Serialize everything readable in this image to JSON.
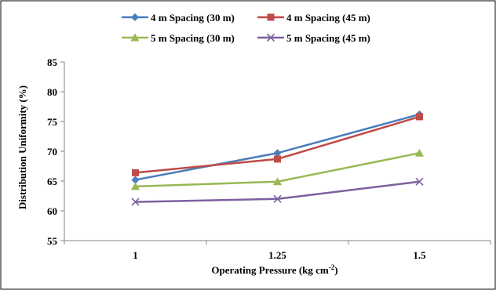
{
  "chart_data": {
    "type": "line",
    "title": "",
    "xlabel": "Operating Pressure (kg cm",
    "xlabel_sup": "-2",
    "xlabel_end": ")",
    "ylabel": "Distribution  Uniformity (%)",
    "categories": [
      "1",
      "1.25",
      "1.5"
    ],
    "ylim": [
      55,
      85
    ],
    "yticks": [
      "55",
      "60",
      "65",
      "70",
      "75",
      "80",
      "85"
    ],
    "grid": false,
    "legend_position": "top",
    "series": [
      {
        "name": "4 m Spacing (30 m)",
        "values": [
          65.2,
          69.7,
          76.2
        ],
        "color": "#4a7ebb",
        "marker": "diamond"
      },
      {
        "name": "4 m Spacing (45 m)",
        "values": [
          66.4,
          68.7,
          75.8
        ],
        "color": "#be4b48",
        "marker": "square"
      },
      {
        "name": "5 m Spacing (30 m)",
        "values": [
          64.1,
          64.9,
          69.7
        ],
        "color": "#98b954",
        "marker": "triangle"
      },
      {
        "name": "5 m Spacing (45 m)",
        "values": [
          61.5,
          62.0,
          64.9
        ],
        "color": "#7d60a0",
        "marker": "x"
      }
    ]
  }
}
